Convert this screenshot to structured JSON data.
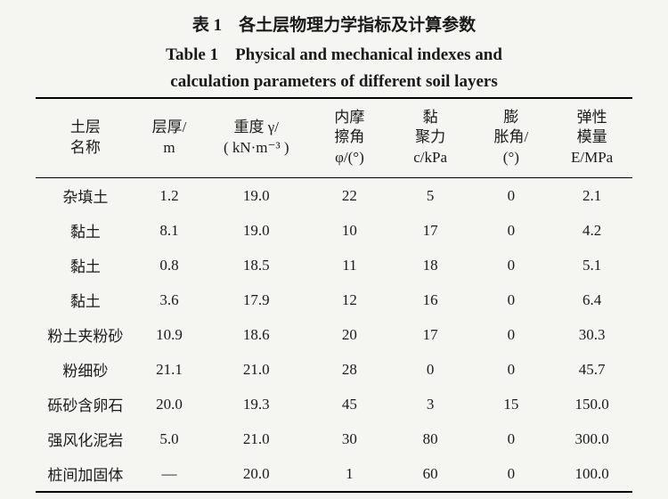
{
  "caption_cn": "表 1　各土层物理力学指标及计算参数",
  "caption_en_line1": "Table 1　Physical and mechanical indexes and",
  "caption_en_line2": "calculation parameters of different soil layers",
  "table": {
    "type": "table",
    "background_color": "#f5f5f2",
    "text_color": "#1a1a1a",
    "rule_color": "#000000",
    "columns": [
      {
        "lines": [
          "土层",
          "名称"
        ],
        "width": 0.16,
        "align": "center"
      },
      {
        "lines": [
          "层厚/",
          "m"
        ],
        "width": 0.11,
        "align": "center"
      },
      {
        "lines": [
          "重度 γ/",
          "( kN·m⁻³ )"
        ],
        "width": 0.17,
        "align": "center"
      },
      {
        "lines": [
          "内摩",
          "擦角",
          "φ/(°)"
        ],
        "width": 0.13,
        "align": "center"
      },
      {
        "lines": [
          "黏",
          "聚力",
          "c/kPa"
        ],
        "width": 0.13,
        "align": "center"
      },
      {
        "lines": [
          "膨",
          "胀角/",
          "(°)"
        ],
        "width": 0.13,
        "align": "center"
      },
      {
        "lines": [
          "弹性",
          "模量",
          "E/MPa"
        ],
        "width": 0.13,
        "align": "center"
      }
    ],
    "rows": [
      [
        "杂填土",
        "1.2",
        "19.0",
        "22",
        "5",
        "0",
        "2.1"
      ],
      [
        "黏土",
        "8.1",
        "19.0",
        "10",
        "17",
        "0",
        "4.2"
      ],
      [
        "黏土",
        "0.8",
        "18.5",
        "11",
        "18",
        "0",
        "5.1"
      ],
      [
        "黏土",
        "3.6",
        "17.9",
        "12",
        "16",
        "0",
        "6.4"
      ],
      [
        "粉土夹粉砂",
        "10.9",
        "18.6",
        "20",
        "17",
        "0",
        "30.3"
      ],
      [
        "粉细砂",
        "21.1",
        "21.0",
        "28",
        "0",
        "0",
        "45.7"
      ],
      [
        "砾砂含卵石",
        "20.0",
        "19.3",
        "45",
        "3",
        "15",
        "150.0"
      ],
      [
        "强风化泥岩",
        "5.0",
        "21.0",
        "30",
        "80",
        "0",
        "300.0"
      ],
      [
        "桩间加固体",
        "—",
        "20.0",
        "1",
        "60",
        "0",
        "100.0"
      ]
    ],
    "header_fontsize": 17,
    "body_fontsize": 17,
    "caption_fontsize": 19
  }
}
